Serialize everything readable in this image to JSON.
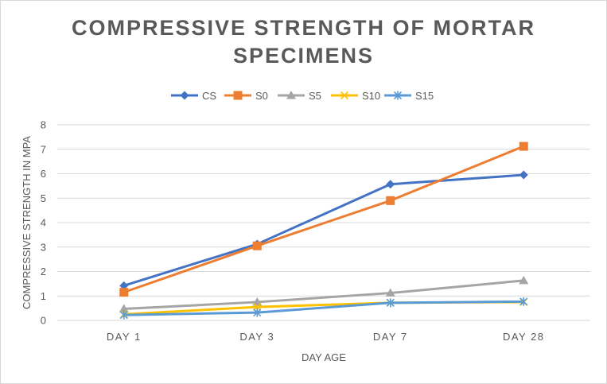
{
  "chart_data": {
    "type": "line",
    "title_line1": "COMPRESSIVE STRENGTH OF MORTAR",
    "title_line2": "SPECIMENS",
    "xlabel": "DAY AGE",
    "ylabel": "COMPRESSIVE STRENGTH IN MPA",
    "categories": [
      "DAY 1",
      "DAY 3",
      "DAY 7",
      "DAY 28"
    ],
    "ylim": [
      0,
      8
    ],
    "yticks": [
      0,
      1,
      2,
      3,
      4,
      5,
      6,
      7,
      8
    ],
    "grid": true,
    "legend_position": "top",
    "series": [
      {
        "name": "CS",
        "values": [
          1.42,
          3.12,
          5.57,
          5.95
        ],
        "color": "#4472c4",
        "marker": "diamond"
      },
      {
        "name": "S0",
        "values": [
          1.15,
          3.05,
          4.9,
          7.12
        ],
        "color": "#ed7d31",
        "marker": "square"
      },
      {
        "name": "S5",
        "values": [
          0.47,
          0.75,
          1.12,
          1.63
        ],
        "color": "#a5a5a5",
        "marker": "triangle"
      },
      {
        "name": "S10",
        "values": [
          0.25,
          0.55,
          0.72,
          0.75
        ],
        "color": "#ffc000",
        "marker": "x"
      },
      {
        "name": "S15",
        "values": [
          0.22,
          0.32,
          0.72,
          0.77
        ],
        "color": "#5b9bd5",
        "marker": "star"
      }
    ]
  }
}
